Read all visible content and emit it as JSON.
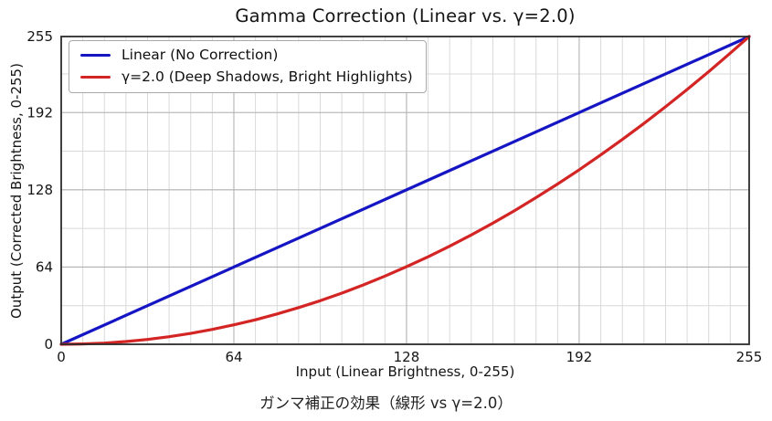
{
  "figure": {
    "background": "#ffffff",
    "text_color": "#151515"
  },
  "chart_data": {
    "type": "line",
    "title": "Gamma Correction (Linear vs. γ=2.0)",
    "xlabel": "Input (Linear Brightness, 0-255)",
    "ylabel": "Output (Corrected Brightness, 0-255)",
    "caption": "ガンマ補正の効果（線形 vs γ=2.0）",
    "xlim": [
      0,
      255
    ],
    "ylim": [
      0,
      255
    ],
    "xticks": [
      0,
      64,
      128,
      192,
      255
    ],
    "yticks": [
      0,
      64,
      128,
      192,
      255
    ],
    "grid": {
      "on": true,
      "x_minor_step": 8,
      "y_minor_step": 32,
      "minor_color": "#d9d9d9",
      "major_color": "#b3b3b3"
    },
    "spine_color": "#2b2b2b",
    "legend": {
      "position": "upper-left"
    },
    "series": [
      {
        "name": "Linear (No Correction)",
        "slug": "linear",
        "color": "#1515c3",
        "x": [
          0,
          255
        ],
        "y": [
          0,
          255
        ]
      },
      {
        "name": "γ=2.0 (Deep Shadows, Bright Highlights)",
        "slug": "gamma-2.0",
        "color": "#d42525",
        "x": [
          0,
          8,
          16,
          24,
          32,
          40,
          48,
          56,
          64,
          72,
          80,
          88,
          96,
          104,
          112,
          120,
          128,
          136,
          144,
          152,
          160,
          168,
          176,
          184,
          192,
          200,
          208,
          216,
          224,
          232,
          240,
          248,
          255
        ],
        "y": [
          0,
          0.3,
          1.0,
          2.3,
          4.0,
          6.3,
          9.0,
          12.3,
          16.1,
          20.3,
          25.1,
          30.4,
          36.1,
          42.4,
          49.2,
          56.5,
          64.3,
          72.5,
          81.3,
          90.6,
          100.4,
          110.7,
          121.5,
          132.8,
          144.6,
          156.9,
          169.7,
          183.0,
          196.8,
          211.1,
          225.9,
          241.2,
          255
        ]
      }
    ]
  }
}
